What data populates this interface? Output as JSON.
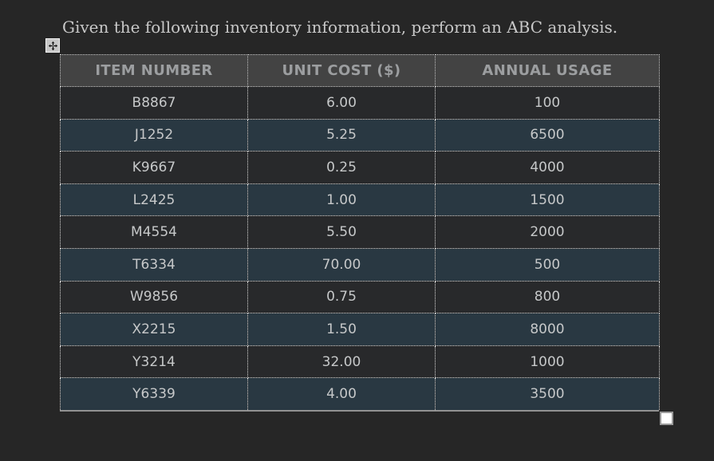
{
  "title": "Given the following inventory information, perform an ABC analysis.",
  "table": {
    "columns": [
      "ITEM NUMBER",
      "UNIT COST ($)",
      "ANNUAL USAGE"
    ],
    "rows": [
      [
        "B8867",
        "6.00",
        "100"
      ],
      [
        "J1252",
        "5.25",
        "6500"
      ],
      [
        "K9667",
        "0.25",
        "4000"
      ],
      [
        "L2425",
        "1.00",
        "1500"
      ],
      [
        "M4554",
        "5.50",
        "2000"
      ],
      [
        "T6334",
        "70.00",
        "500"
      ],
      [
        "W9856",
        "0.75",
        "800"
      ],
      [
        "X2215",
        "1.50",
        "8000"
      ],
      [
        "Y3214",
        "32.00",
        "1000"
      ],
      [
        "Y6339",
        "4.00",
        "3500"
      ]
    ]
  },
  "icons": {
    "move_handle": "move-icon",
    "resize_handle": "resize-handle"
  },
  "colors": {
    "page_bg": "#262626",
    "header_bg": "#434343",
    "row_dark": "#28292b",
    "row_teal": "#293842",
    "border_dotted": "#dcdcdc",
    "border_bottom": "#919191",
    "header_text": "#9c9ea0",
    "cell_text": "#c6c8c9",
    "title_text": "#c8c8c8"
  }
}
